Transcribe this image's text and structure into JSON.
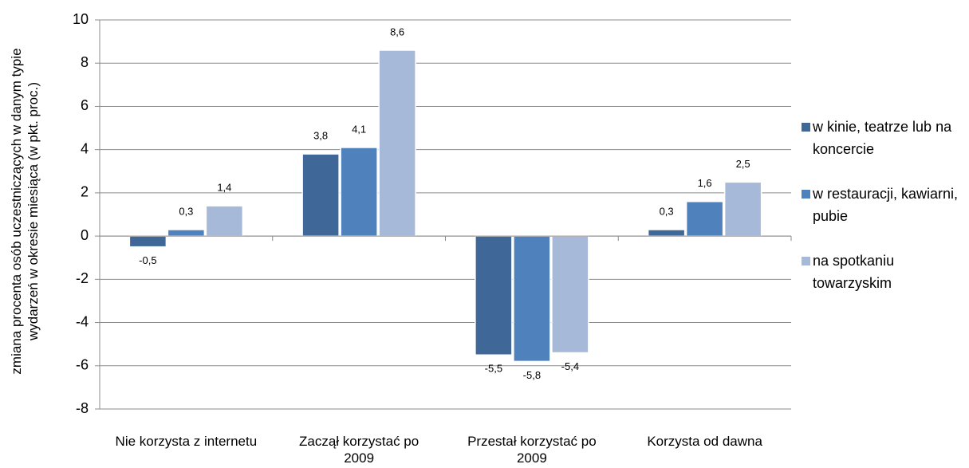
{
  "chart_data": {
    "type": "bar",
    "ylabel": "zmiana procenta osób uczestniczących w danym typie wydarzeń w okresie miesiąca (w pkt. proc.)",
    "categories": [
      "Nie korzysta z internetu",
      "Zaczął korzystać po 2009",
      "Przestał korzystać po 2009",
      "Korzysta od dawna"
    ],
    "series": [
      {
        "name": "w kinie, teatrze lub na koncercie",
        "color": "#3f6797",
        "values": [
          -0.5,
          3.8,
          -5.5,
          0.3
        ],
        "value_labels": [
          "-0,5",
          "3,8",
          "-5,5",
          "0,3"
        ]
      },
      {
        "name": "w restauracji, kawiarni, pubie",
        "color": "#4f81bd",
        "values": [
          0.3,
          4.1,
          -5.8,
          1.6
        ],
        "value_labels": [
          "0,3",
          "4,1",
          "-5,8",
          "1,6"
        ]
      },
      {
        "name": "na spotkaniu towarzyskim",
        "color": "#a7b9d9",
        "values": [
          1.4,
          8.6,
          -5.4,
          2.5
        ],
        "value_labels": [
          "1,4",
          "8,6",
          "-5,4",
          "2,5"
        ]
      }
    ],
    "ylim": [
      -8,
      10
    ],
    "yticks": [
      -8,
      -6,
      -4,
      -2,
      0,
      2,
      4,
      6,
      8,
      10
    ],
    "grid": true,
    "legend": "right"
  }
}
